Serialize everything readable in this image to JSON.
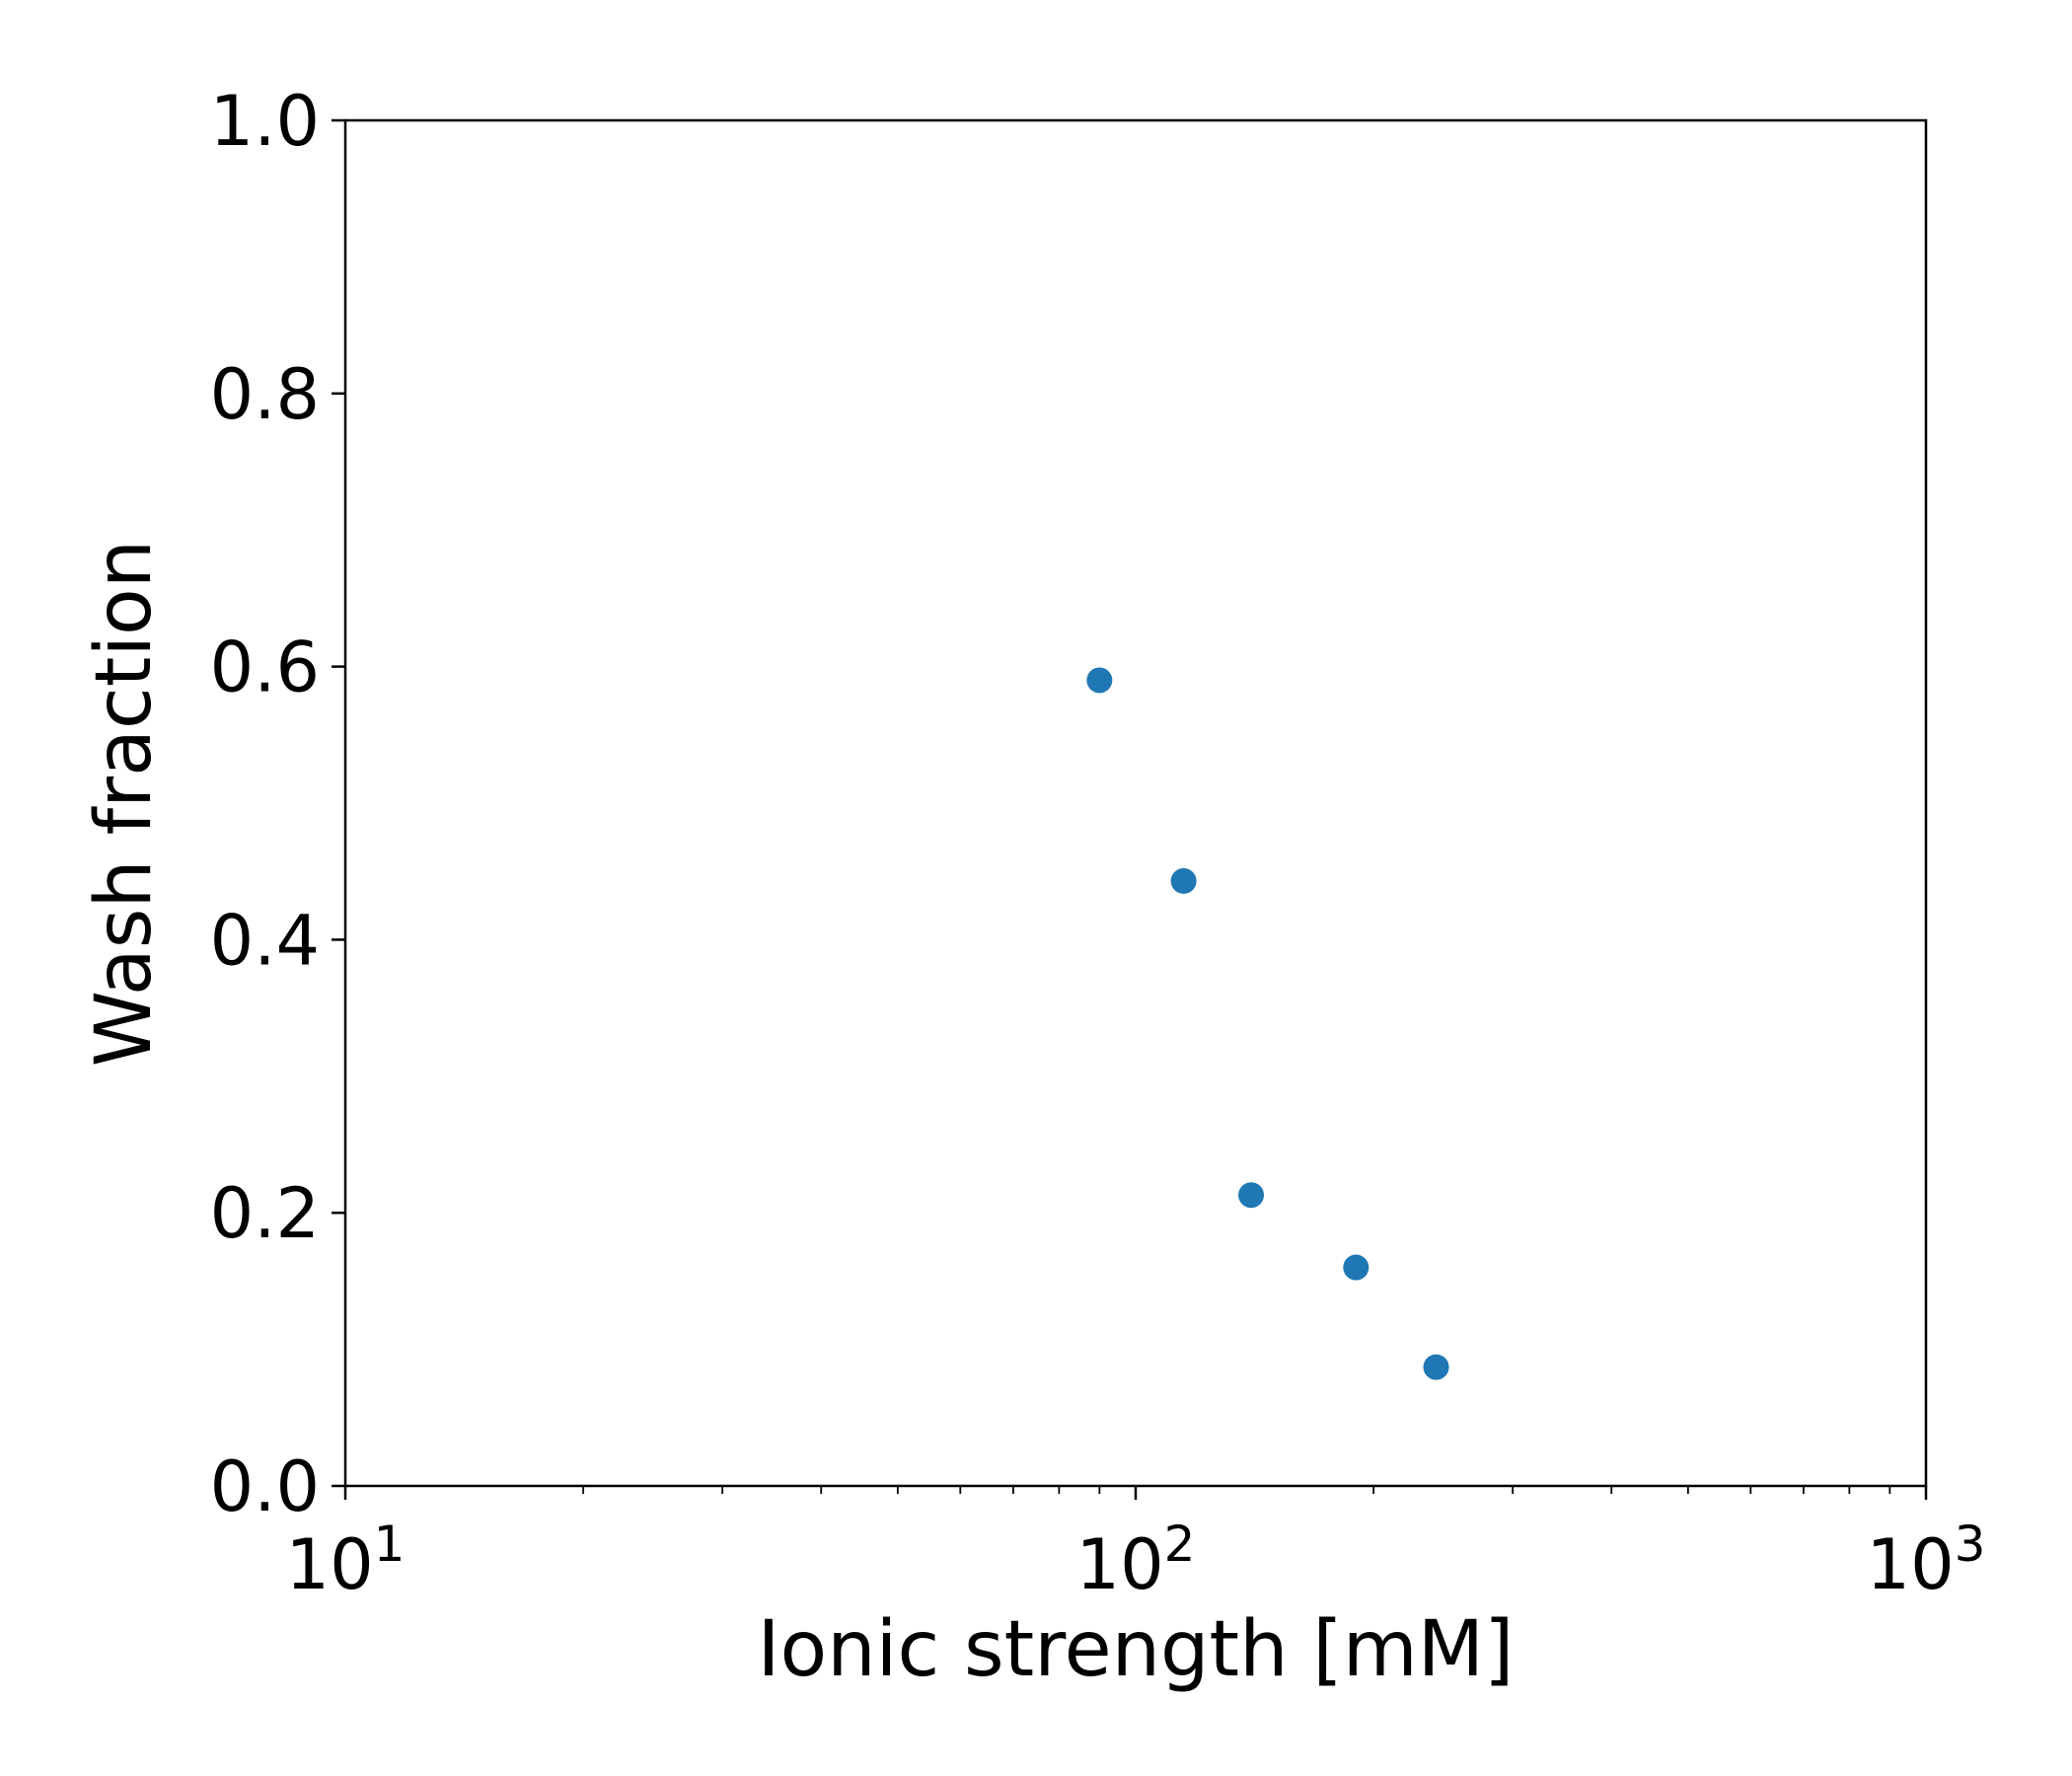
{
  "chart_data": {
    "type": "scatter",
    "title": "",
    "xlabel": "Ionic strength [mM]",
    "ylabel": "Wash fraction",
    "xscale": "log",
    "xlim": [
      10,
      1000
    ],
    "ylim": [
      0.0,
      1.0
    ],
    "grid": false,
    "x_ticks": [
      {
        "value": 10,
        "base": "10",
        "exp": "1"
      },
      {
        "value": 100,
        "base": "10",
        "exp": "2"
      },
      {
        "value": 1000,
        "base": "10",
        "exp": "3"
      }
    ],
    "y_ticks": [
      {
        "value": 0.0,
        "label": "0.0"
      },
      {
        "value": 0.2,
        "label": "0.2"
      },
      {
        "value": 0.4,
        "label": "0.4"
      },
      {
        "value": 0.6,
        "label": "0.6"
      },
      {
        "value": 0.8,
        "label": "0.8"
      },
      {
        "value": 1.0,
        "label": "1.0"
      }
    ],
    "series": [
      {
        "color": "#1f77b4",
        "points": [
          {
            "x": 90,
            "y": 0.59
          },
          {
            "x": 115,
            "y": 0.443
          },
          {
            "x": 140,
            "y": 0.213
          },
          {
            "x": 190,
            "y": 0.16
          },
          {
            "x": 240,
            "y": 0.087
          }
        ]
      }
    ]
  }
}
